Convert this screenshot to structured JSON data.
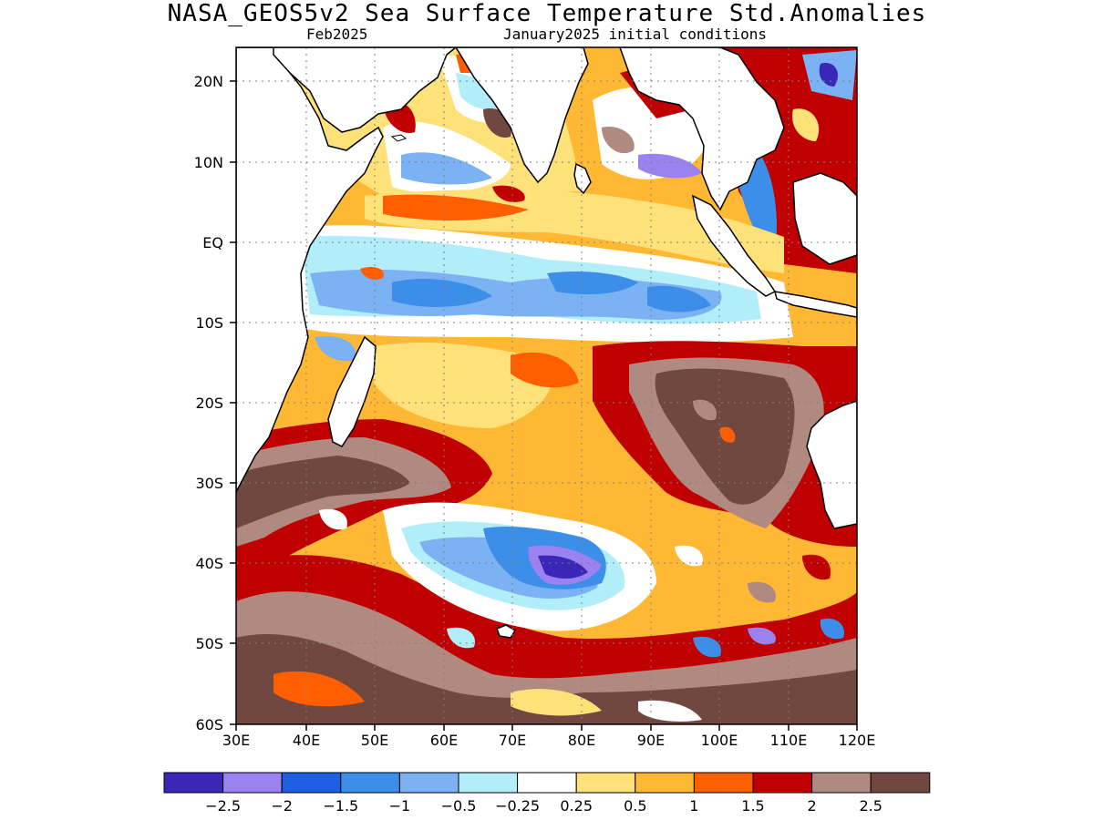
{
  "title": "NASA_GEOS5v2 Sea Surface Temperature Std.Anomalies",
  "subtitle_left": "Feb2025",
  "subtitle_right": "January2025 initial conditions",
  "lat_ticks": [
    "20N",
    "10N",
    "EQ",
    "10S",
    "20S",
    "30S",
    "40S",
    "50S",
    "60S"
  ],
  "lon_ticks": [
    "30E",
    "40E",
    "50E",
    "60E",
    "70E",
    "80E",
    "90E",
    "100E",
    "110E",
    "120E"
  ],
  "colorbar": {
    "colors": [
      "#3a27b8",
      "#9b82f0",
      "#1e5ee3",
      "#3d8ee8",
      "#7ab2f3",
      "#b2eefa",
      "#ffffff",
      "#ffe17a",
      "#ffb833",
      "#ff5f00",
      "#c00000",
      "#b08a80",
      "#70483f"
    ],
    "labels": [
      "−2.5",
      "−2",
      "−1.5",
      "−1",
      "−0.5",
      "−0.25",
      "0.25",
      "0.5",
      "1",
      "1.5",
      "2",
      "2.5"
    ]
  }
}
